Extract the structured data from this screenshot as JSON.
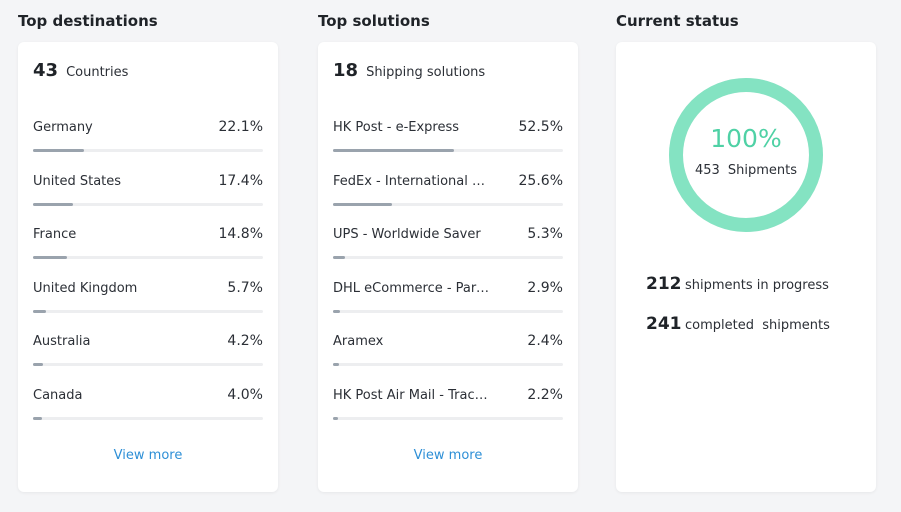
{
  "destinations": {
    "title": "Top destinations",
    "count": "43",
    "count_label": "Countries",
    "view_more": "View more",
    "items": [
      {
        "name": "Germany",
        "percent": "22.1%",
        "value": 22.1
      },
      {
        "name": "United States",
        "percent": "17.4%",
        "value": 17.4
      },
      {
        "name": "France",
        "percent": "14.8%",
        "value": 14.8
      },
      {
        "name": "United Kingdom",
        "percent": "5.7%",
        "value": 5.7
      },
      {
        "name": "Australia",
        "percent": "4.2%",
        "value": 4.2
      },
      {
        "name": "Canada",
        "percent": "4.0%",
        "value": 4.0
      }
    ]
  },
  "solutions": {
    "title": "Top solutions",
    "count": "18",
    "count_label": "Shipping solutions",
    "view_more": "View more",
    "items": [
      {
        "name": "HK Post - e-Express",
        "percent": "52.5%",
        "value": 52.5
      },
      {
        "name": "FedEx - International Economy",
        "percent": "25.6%",
        "value": 25.6
      },
      {
        "name": "UPS - Worldwide Saver",
        "percent": "5.3%",
        "value": 5.3
      },
      {
        "name": "DHL eCommerce - Parcel Direct",
        "percent": "2.9%",
        "value": 2.9
      },
      {
        "name": "Aramex",
        "percent": "2.4%",
        "value": 2.4
      },
      {
        "name": "HK Post Air Mail - Tracking",
        "percent": "2.2%",
        "value": 2.2
      }
    ]
  },
  "status": {
    "title": "Current status",
    "ring_percent": "100%",
    "ring_value": 100,
    "shipments_count": "453",
    "shipments_label": "Shipments",
    "in_progress_count": "212",
    "in_progress_label": "shipments in progress",
    "completed_count": "241",
    "completed_label": "completed  shipments"
  },
  "colors": {
    "ring": "#84e3c2",
    "ring_text": "#4fd1a5",
    "bar_fill": "#9aa3ad",
    "bar_track": "#edeef0",
    "link": "#2e8fd6"
  }
}
